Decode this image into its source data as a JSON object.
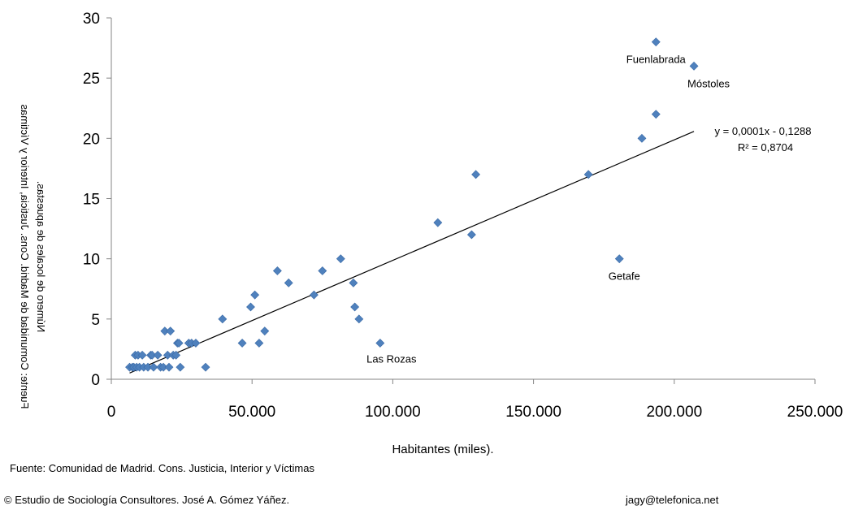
{
  "chart_data": {
    "type": "scatter",
    "xlabel": "Habitantes (miles).",
    "ylabel": "Número de locales de apuestas.",
    "ylabel_source": "Fuente: Comunidad de Madrid. Cons. Justicia, Interior y Víctimas",
    "xlim": [
      0,
      250000
    ],
    "ylim": [
      0,
      30
    ],
    "x_ticks": [
      "0",
      "50.000",
      "100.000",
      "150.000",
      "200.000",
      "250.000"
    ],
    "y_ticks": [
      "0",
      "5",
      "10",
      "15",
      "20",
      "25",
      "30"
    ],
    "marker_color": "#4F81BD",
    "trendline": {
      "equation": "y = 0,0001x - 0,1288",
      "r2": "R² = 0,8704",
      "slope": 0.0001,
      "intercept": -0.1288,
      "x_range": [
        6500,
        207000
      ]
    },
    "points": [
      {
        "x": 6500,
        "y": 1
      },
      {
        "x": 7500,
        "y": 1
      },
      {
        "x": 8000,
        "y": 1
      },
      {
        "x": 8500,
        "y": 2
      },
      {
        "x": 9000,
        "y": 1
      },
      {
        "x": 9500,
        "y": 2
      },
      {
        "x": 10000,
        "y": 1
      },
      {
        "x": 11000,
        "y": 2
      },
      {
        "x": 11500,
        "y": 1
      },
      {
        "x": 13000,
        "y": 1
      },
      {
        "x": 14000,
        "y": 2
      },
      {
        "x": 14500,
        "y": 2
      },
      {
        "x": 15000,
        "y": 1
      },
      {
        "x": 16500,
        "y": 2
      },
      {
        "x": 17500,
        "y": 1
      },
      {
        "x": 18500,
        "y": 1
      },
      {
        "x": 19000,
        "y": 4
      },
      {
        "x": 20000,
        "y": 2
      },
      {
        "x": 20500,
        "y": 1
      },
      {
        "x": 21000,
        "y": 4
      },
      {
        "x": 22000,
        "y": 2
      },
      {
        "x": 23000,
        "y": 2
      },
      {
        "x": 23500,
        "y": 3
      },
      {
        "x": 24000,
        "y": 3
      },
      {
        "x": 24500,
        "y": 1
      },
      {
        "x": 27500,
        "y": 3
      },
      {
        "x": 28500,
        "y": 3
      },
      {
        "x": 30000,
        "y": 3
      },
      {
        "x": 33500,
        "y": 1
      },
      {
        "x": 39500,
        "y": 5
      },
      {
        "x": 46500,
        "y": 3
      },
      {
        "x": 49500,
        "y": 6
      },
      {
        "x": 51000,
        "y": 7
      },
      {
        "x": 52500,
        "y": 3
      },
      {
        "x": 54500,
        "y": 4
      },
      {
        "x": 59000,
        "y": 9
      },
      {
        "x": 63000,
        "y": 8
      },
      {
        "x": 72000,
        "y": 7
      },
      {
        "x": 75000,
        "y": 9
      },
      {
        "x": 81500,
        "y": 10
      },
      {
        "x": 86000,
        "y": 8
      },
      {
        "x": 86500,
        "y": 6
      },
      {
        "x": 88000,
        "y": 5
      },
      {
        "x": 95500,
        "y": 3,
        "label": "Las Rozas"
      },
      {
        "x": 116000,
        "y": 13
      },
      {
        "x": 128000,
        "y": 12
      },
      {
        "x": 129500,
        "y": 17
      },
      {
        "x": 169500,
        "y": 17
      },
      {
        "x": 180500,
        "y": 10,
        "label": "Getafe"
      },
      {
        "x": 188500,
        "y": 20
      },
      {
        "x": 193500,
        "y": 22
      },
      {
        "x": 193500,
        "y": 28,
        "label": "Fuenlabrada"
      },
      {
        "x": 207000,
        "y": 26,
        "label": "Móstoles"
      }
    ]
  },
  "footer": {
    "source": "Fuente: Comunidad de Madrid. Cons. Justicia, Interior y Víctimas",
    "copyright": "© Estudio de Sociología Consultores. José A. Gómez Yáñez.",
    "email": "jagy@telefonica.net"
  }
}
